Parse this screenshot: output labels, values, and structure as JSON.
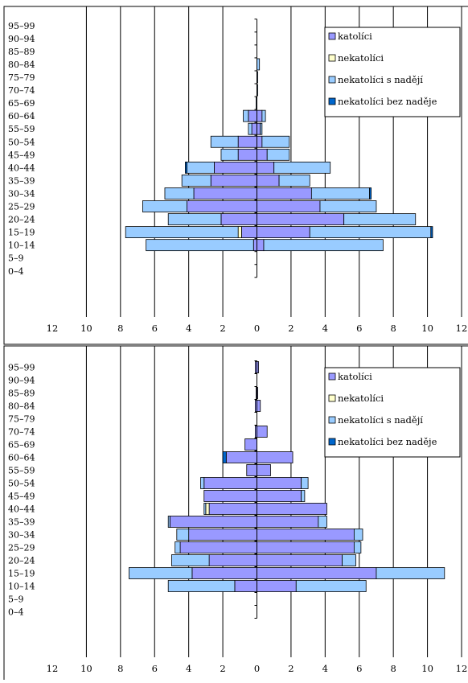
{
  "colors": {
    "katolici": "#9999ff",
    "nekatolici": "#ffffcc",
    "nekatolici_s_nadeji": "#99ccff",
    "nekatolici_bez_nadeje": "#0066cc"
  },
  "chart_data": [
    {
      "type": "bar",
      "orientation": "horizontal",
      "stacked": true,
      "title": "",
      "xlabel": "",
      "ylabel": "",
      "xlim": [
        -12,
        12
      ],
      "x_ticks": [
        "12",
        "10",
        "8",
        "6",
        "4",
        "2",
        "0",
        "2",
        "4",
        "6",
        "8",
        "10",
        "12"
      ],
      "x_tick_values": [
        -12,
        -10,
        -8,
        -6,
        -4,
        -2,
        0,
        2,
        4,
        6,
        8,
        10,
        12
      ],
      "grid": true,
      "legend_position": "top-right",
      "categories": [
        "95–99",
        "90–94",
        "85–89",
        "80–84",
        "75–79",
        "70–74",
        "65–69",
        "60–64",
        "55–59",
        "50–54",
        "45–49",
        "40–44",
        "35–39",
        "30–34",
        "25–29",
        "20–24",
        "15–19",
        "10–14",
        "5–9",
        "0–4"
      ],
      "series": [
        {
          "name": "katolíci",
          "color_key": "katolici",
          "left": [
            0,
            0,
            0,
            0,
            0,
            0,
            0,
            0.5,
            0.3,
            1.1,
            1.1,
            2.5,
            2.7,
            3.7,
            4.1,
            2.1,
            0.9,
            0.2,
            0,
            0
          ],
          "right": [
            0,
            0,
            0,
            0,
            0,
            0,
            0,
            0.3,
            0.2,
            0.3,
            0.6,
            1.0,
            1.3,
            3.2,
            3.7,
            5.1,
            3.1,
            0.4,
            0,
            0
          ]
        },
        {
          "name": "nekatolíci",
          "color_key": "nekatolici",
          "left": [
            0,
            0,
            0,
            0,
            0,
            0,
            0,
            0,
            0,
            0,
            0,
            0,
            0,
            0,
            0,
            0,
            0.2,
            0,
            0,
            0
          ],
          "right": [
            0,
            0,
            0,
            0,
            0,
            0,
            0,
            0,
            0,
            0,
            0,
            0,
            0,
            0,
            0,
            0,
            0,
            0,
            0,
            0
          ]
        },
        {
          "name": "nekatolíci s nadějí",
          "color_key": "nekatolici_s_nadeji",
          "left": [
            0,
            0,
            0,
            0,
            0,
            0,
            0.05,
            0.3,
            0.2,
            1.6,
            1.0,
            1.6,
            1.7,
            1.7,
            2.6,
            3.1,
            6.6,
            6.3,
            0,
            0
          ],
          "right": [
            0,
            0,
            0,
            0.15,
            0.05,
            0.05,
            0,
            0.2,
            0.1,
            1.6,
            1.3,
            3.3,
            1.8,
            3.4,
            3.3,
            4.2,
            7.1,
            7.0,
            0,
            0
          ]
        },
        {
          "name": "nekatolíci bez naděje",
          "color_key": "nekatolici_bez_nadeje",
          "left": [
            0,
            0,
            0,
            0,
            0,
            0,
            0,
            0,
            0,
            0,
            0,
            0.1,
            0,
            0,
            0,
            0,
            0,
            0,
            0,
            0
          ],
          "right": [
            0,
            0,
            0,
            0,
            0,
            0,
            0,
            0,
            0,
            0,
            0,
            0,
            0,
            0.1,
            0,
            0,
            0.1,
            0,
            0,
            0
          ]
        }
      ]
    },
    {
      "type": "bar",
      "orientation": "horizontal",
      "stacked": true,
      "title": "",
      "xlabel": "",
      "ylabel": "",
      "xlim": [
        -12,
        12
      ],
      "x_ticks": [
        "12",
        "10",
        "8",
        "6",
        "4",
        "2",
        "0",
        "2",
        "4",
        "6",
        "8",
        "10",
        "12"
      ],
      "x_tick_values": [
        -12,
        -10,
        -8,
        -6,
        -4,
        -2,
        0,
        2,
        4,
        6,
        8,
        10,
        12
      ],
      "grid": true,
      "legend_position": "top-right",
      "categories": [
        "95–99",
        "90–94",
        "85–89",
        "80–84",
        "75–79",
        "70–74",
        "65–69",
        "60–64",
        "55–59",
        "50–54",
        "45–49",
        "40–44",
        "35–39",
        "30–34",
        "25–29",
        "20–24",
        "15–19",
        "10–14",
        "5–9",
        "0–4"
      ],
      "series": [
        {
          "name": "katolíci",
          "color_key": "katolici",
          "left": [
            0.1,
            0,
            0.05,
            0.1,
            0,
            0.1,
            0.7,
            1.8,
            0.6,
            3.1,
            3.1,
            2.8,
            5.1,
            4.0,
            4.5,
            2.8,
            3.8,
            1.3,
            0,
            0
          ],
          "right": [
            0.1,
            0,
            0.05,
            0.2,
            0,
            0.6,
            0,
            2.1,
            0.8,
            2.6,
            2.6,
            4.1,
            3.6,
            5.7,
            5.7,
            5.0,
            7.0,
            2.3,
            0,
            0
          ]
        },
        {
          "name": "nekatolíci",
          "color_key": "nekatolici",
          "left": [
            0,
            0,
            0,
            0,
            0,
            0,
            0,
            0,
            0,
            0,
            0,
            0.2,
            0,
            0,
            0,
            0,
            0,
            0,
            0,
            0
          ],
          "right": [
            0,
            0,
            0,
            0,
            0,
            0,
            0,
            0,
            0,
            0,
            0,
            0,
            0,
            0,
            0,
            0,
            0,
            0,
            0,
            0
          ]
        },
        {
          "name": "nekatolíci s nadějí",
          "color_key": "nekatolici_s_nadeji",
          "left": [
            0,
            0,
            0,
            0,
            0,
            0,
            0,
            0,
            0,
            0.2,
            0,
            0.1,
            0.1,
            0.7,
            0.3,
            2.2,
            3.7,
            3.9,
            0,
            0
          ],
          "right": [
            0,
            0,
            0,
            0,
            0,
            0,
            0,
            0,
            0,
            0.4,
            0.2,
            0,
            0.5,
            0.5,
            0.4,
            0.8,
            4.0,
            4.1,
            0,
            0
          ]
        },
        {
          "name": "nekatolíci bez naděje",
          "color_key": "nekatolici_bez_nadeje",
          "left": [
            0,
            0,
            0,
            0,
            0,
            0,
            0,
            0.2,
            0,
            0,
            0,
            0,
            0,
            0,
            0,
            0,
            0,
            0,
            0,
            0
          ],
          "right": [
            0,
            0,
            0,
            0,
            0,
            0,
            0,
            0,
            0,
            0,
            0,
            0,
            0,
            0,
            0,
            0,
            0,
            0,
            0,
            0
          ]
        }
      ]
    }
  ]
}
